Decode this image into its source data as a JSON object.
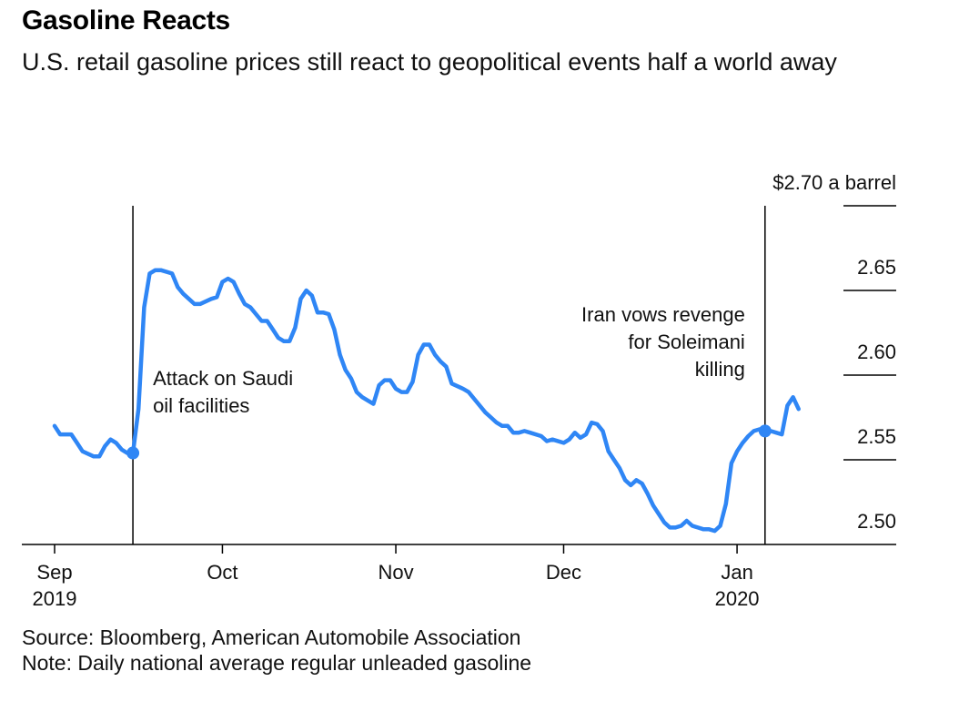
{
  "header": {
    "title": "Gasoline Reacts",
    "subtitle": "U.S. retail gasoline prices still react to geopolitical events half a world away"
  },
  "footer": {
    "source": "Source: Bloomberg, American Automobile Association",
    "note": "Note: Daily national average regular unleaded gasoline"
  },
  "colors": {
    "line": "#2f86f5",
    "axis": "#000000"
  },
  "chart_data": {
    "type": "line",
    "title": "Gasoline Reacts",
    "subtitle": "U.S. retail gasoline prices still react to geopolitical events half a world away",
    "ylim": [
      2.5,
      2.7
    ],
    "yticks": [
      2.5,
      2.55,
      2.6,
      2.65,
      2.7
    ],
    "ytick_labels": [
      "2.50",
      "2.55",
      "2.60",
      "2.65",
      "$2.70 a barrel"
    ],
    "y_axis_side": "right",
    "xlim": [
      "2019-09-01",
      "2020-01-14"
    ],
    "xticks": [
      {
        "date": "2019-09-01",
        "label": "Sep",
        "sublabel": "2019"
      },
      {
        "date": "2019-10-01",
        "label": "Oct",
        "sublabel": ""
      },
      {
        "date": "2019-11-01",
        "label": "Nov",
        "sublabel": ""
      },
      {
        "date": "2019-12-01",
        "label": "Dec",
        "sublabel": ""
      },
      {
        "date": "2020-01-01",
        "label": "Jan",
        "sublabel": "2020"
      }
    ],
    "grid": false,
    "series": [
      {
        "points": [
          [
            "2019-09-01",
            2.57
          ],
          [
            "2019-09-02",
            2.565
          ],
          [
            "2019-09-04",
            2.565
          ],
          [
            "2019-09-05",
            2.56
          ],
          [
            "2019-09-06",
            2.555
          ],
          [
            "2019-09-08",
            2.552
          ],
          [
            "2019-09-09",
            2.552
          ],
          [
            "2019-09-10",
            2.558
          ],
          [
            "2019-09-11",
            2.562
          ],
          [
            "2019-09-12",
            2.56
          ],
          [
            "2019-09-13",
            2.556
          ],
          [
            "2019-09-14",
            2.554
          ],
          [
            "2019-09-15",
            2.554
          ],
          [
            "2019-09-16",
            2.58
          ],
          [
            "2019-09-17",
            2.64
          ],
          [
            "2019-09-18",
            2.66
          ],
          [
            "2019-09-19",
            2.662
          ],
          [
            "2019-09-20",
            2.662
          ],
          [
            "2019-09-22",
            2.66
          ],
          [
            "2019-09-23",
            2.652
          ],
          [
            "2019-09-24",
            2.648
          ],
          [
            "2019-09-25",
            2.645
          ],
          [
            "2019-09-26",
            2.642
          ],
          [
            "2019-09-27",
            2.642
          ],
          [
            "2019-09-29",
            2.645
          ],
          [
            "2019-09-30",
            2.646
          ],
          [
            "2019-10-01",
            2.655
          ],
          [
            "2019-10-02",
            2.657
          ],
          [
            "2019-10-03",
            2.655
          ],
          [
            "2019-10-04",
            2.648
          ],
          [
            "2019-10-05",
            2.642
          ],
          [
            "2019-10-06",
            2.64
          ],
          [
            "2019-10-07",
            2.636
          ],
          [
            "2019-10-08",
            2.632
          ],
          [
            "2019-10-09",
            2.632
          ],
          [
            "2019-10-10",
            2.627
          ],
          [
            "2019-10-11",
            2.622
          ],
          [
            "2019-10-12",
            2.62
          ],
          [
            "2019-10-13",
            2.62
          ],
          [
            "2019-10-14",
            2.628
          ],
          [
            "2019-10-15",
            2.645
          ],
          [
            "2019-10-16",
            2.65
          ],
          [
            "2019-10-17",
            2.647
          ],
          [
            "2019-10-18",
            2.637
          ],
          [
            "2019-10-19",
            2.637
          ],
          [
            "2019-10-20",
            2.636
          ],
          [
            "2019-10-21",
            2.627
          ],
          [
            "2019-10-22",
            2.612
          ],
          [
            "2019-10-23",
            2.603
          ],
          [
            "2019-10-24",
            2.598
          ],
          [
            "2019-10-25",
            2.59
          ],
          [
            "2019-10-26",
            2.587
          ],
          [
            "2019-10-27",
            2.585
          ],
          [
            "2019-10-28",
            2.583
          ],
          [
            "2019-10-29",
            2.594
          ],
          [
            "2019-10-30",
            2.597
          ],
          [
            "2019-10-31",
            2.597
          ],
          [
            "2019-11-01",
            2.592
          ],
          [
            "2019-11-02",
            2.59
          ],
          [
            "2019-11-03",
            2.59
          ],
          [
            "2019-11-04",
            2.596
          ],
          [
            "2019-11-05",
            2.612
          ],
          [
            "2019-11-06",
            2.618
          ],
          [
            "2019-11-07",
            2.618
          ],
          [
            "2019-11-08",
            2.612
          ],
          [
            "2019-11-09",
            2.608
          ],
          [
            "2019-11-10",
            2.605
          ],
          [
            "2019-11-11",
            2.595
          ],
          [
            "2019-11-13",
            2.592
          ],
          [
            "2019-11-14",
            2.59
          ],
          [
            "2019-11-15",
            2.586
          ],
          [
            "2019-11-17",
            2.578
          ],
          [
            "2019-11-18",
            2.575
          ],
          [
            "2019-11-19",
            2.572
          ],
          [
            "2019-11-20",
            2.57
          ],
          [
            "2019-11-21",
            2.57
          ],
          [
            "2019-11-22",
            2.566
          ],
          [
            "2019-11-23",
            2.566
          ],
          [
            "2019-11-24",
            2.567
          ],
          [
            "2019-11-25",
            2.566
          ],
          [
            "2019-11-27",
            2.564
          ],
          [
            "2019-11-28",
            2.561
          ],
          [
            "2019-11-29",
            2.562
          ],
          [
            "2019-12-01",
            2.56
          ],
          [
            "2019-12-02",
            2.562
          ],
          [
            "2019-12-03",
            2.566
          ],
          [
            "2019-12-04",
            2.563
          ],
          [
            "2019-12-05",
            2.565
          ],
          [
            "2019-12-06",
            2.572
          ],
          [
            "2019-12-07",
            2.571
          ],
          [
            "2019-12-08",
            2.567
          ],
          [
            "2019-12-09",
            2.555
          ],
          [
            "2019-12-10",
            2.55
          ],
          [
            "2019-12-11",
            2.545
          ],
          [
            "2019-12-12",
            2.538
          ],
          [
            "2019-12-13",
            2.535
          ],
          [
            "2019-12-14",
            2.538
          ],
          [
            "2019-12-15",
            2.536
          ],
          [
            "2019-12-16",
            2.53
          ],
          [
            "2019-12-17",
            2.523
          ],
          [
            "2019-12-18",
            2.518
          ],
          [
            "2019-12-19",
            2.513
          ],
          [
            "2019-12-20",
            2.51
          ],
          [
            "2019-12-21",
            2.51
          ],
          [
            "2019-12-22",
            2.511
          ],
          [
            "2019-12-23",
            2.514
          ],
          [
            "2019-12-24",
            2.511
          ],
          [
            "2019-12-25",
            2.51
          ],
          [
            "2019-12-26",
            2.509
          ],
          [
            "2019-12-27",
            2.509
          ],
          [
            "2019-12-28",
            2.508
          ],
          [
            "2019-12-29",
            2.511
          ],
          [
            "2019-12-30",
            2.524
          ],
          [
            "2019-12-31",
            2.548
          ],
          [
            "2020-01-01",
            2.555
          ],
          [
            "2020-01-02",
            2.56
          ],
          [
            "2020-01-03",
            2.564
          ],
          [
            "2020-01-04",
            2.567
          ],
          [
            "2020-01-05",
            2.568
          ],
          [
            "2020-01-06",
            2.567
          ],
          [
            "2020-01-07",
            2.567
          ],
          [
            "2020-01-08",
            2.566
          ],
          [
            "2020-01-09",
            2.565
          ],
          [
            "2020-01-10",
            2.582
          ],
          [
            "2020-01-11",
            2.587
          ],
          [
            "2020-01-12",
            2.58
          ]
        ]
      }
    ],
    "annotations": [
      {
        "date": "2019-09-15",
        "value": 2.554,
        "label_lines": [
          "Attack on Saudi",
          "oil facilities"
        ],
        "align": "left"
      },
      {
        "date": "2020-01-06",
        "value": 2.567,
        "label_lines": [
          "Iran vows revenge",
          "for Soleimani",
          "killing"
        ],
        "align": "right"
      }
    ]
  }
}
